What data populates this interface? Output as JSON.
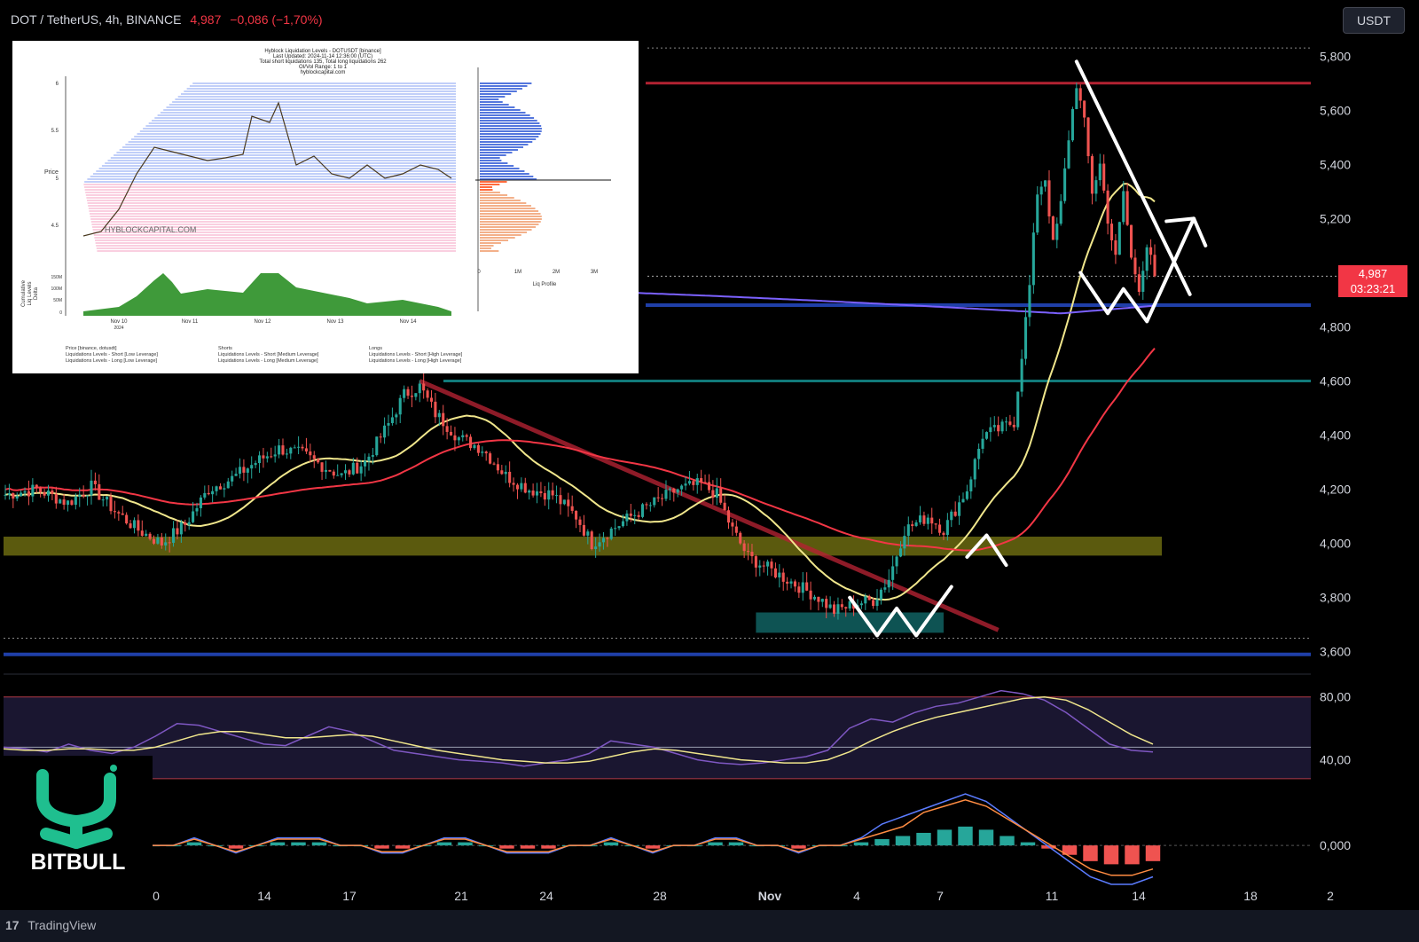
{
  "header": {
    "symbol": "DOT / TetherUS, 4h, BINANCE",
    "price": "4,987",
    "change": "−0,086 (−1,70%)"
  },
  "currency_button": "USDT",
  "price_tag": {
    "price": "4,987",
    "countdown": "03:23:21"
  },
  "branding": {
    "logo_text": "BITBULL",
    "platform": "TradingView"
  },
  "colors": {
    "up": "#26a69a",
    "down": "#ef5350",
    "ma_yellow": "#f0e68c",
    "ma_red": "#f23645",
    "ma_purple": "#7b61ff",
    "support_blue": "#1f3fa8",
    "resist_red": "#b22232",
    "teal_zone": "#0f5c5c",
    "olive_zone": "#6b6a10"
  },
  "chart_data": [
    {
      "type": "candlestick",
      "y_axis_labels": [
        "5,800",
        "5,600",
        "5,400",
        "5,200",
        "4,800",
        "4,600",
        "4,400",
        "4,200",
        "4,000",
        "3,800",
        "3,600"
      ],
      "ylim": [
        3550,
        5850
      ],
      "x_axis_labels": [
        "0",
        "14",
        "17",
        "21",
        "24",
        "28",
        "Nov",
        "4",
        "7",
        "11",
        "14",
        "18",
        "2"
      ],
      "last_price": 4.987,
      "price_path": [
        [
          0,
          4.18
        ],
        [
          8,
          4.2
        ],
        [
          16,
          4.15
        ],
        [
          22,
          4.21
        ],
        [
          28,
          4.12
        ],
        [
          34,
          4.05
        ],
        [
          40,
          4.0
        ],
        [
          46,
          4.07
        ],
        [
          52,
          4.2
        ],
        [
          58,
          4.24
        ],
        [
          64,
          4.3
        ],
        [
          70,
          4.35
        ],
        [
          76,
          4.33
        ],
        [
          82,
          4.28
        ],
        [
          86,
          4.25
        ],
        [
          92,
          4.3
        ],
        [
          98,
          4.44
        ],
        [
          102,
          4.55
        ],
        [
          106,
          4.58
        ],
        [
          110,
          4.48
        ],
        [
          116,
          4.39
        ],
        [
          122,
          4.35
        ],
        [
          128,
          4.25
        ],
        [
          134,
          4.2
        ],
        [
          140,
          4.18
        ],
        [
          146,
          4.1
        ],
        [
          150,
          4.0
        ],
        [
          154,
          4.04
        ],
        [
          160,
          4.1
        ],
        [
          166,
          4.15
        ],
        [
          172,
          4.2
        ],
        [
          178,
          4.22
        ],
        [
          182,
          4.18
        ],
        [
          186,
          4.05
        ],
        [
          190,
          3.95
        ],
        [
          196,
          3.9
        ],
        [
          202,
          3.85
        ],
        [
          208,
          3.8
        ],
        [
          212,
          3.75
        ],
        [
          218,
          3.78
        ],
        [
          222,
          3.79
        ],
        [
          226,
          3.87
        ],
        [
          230,
          4.05
        ],
        [
          236,
          4.1
        ],
        [
          240,
          4.05
        ],
        [
          246,
          4.2
        ],
        [
          250,
          4.4
        ],
        [
          254,
          4.42
        ],
        [
          258,
          4.45
        ],
        [
          260,
          4.7
        ],
        [
          262,
          4.95
        ],
        [
          264,
          5.3
        ],
        [
          266,
          5.35
        ],
        [
          268,
          5.1
        ],
        [
          270,
          5.25
        ],
        [
          272,
          5.5
        ],
        [
          274,
          5.7
        ],
        [
          276,
          5.55
        ],
        [
          278,
          5.3
        ],
        [
          280,
          5.4
        ],
        [
          282,
          5.2
        ],
        [
          284,
          5.05
        ],
        [
          286,
          5.3
        ],
        [
          288,
          5.05
        ],
        [
          290,
          4.95
        ],
        [
          292,
          5.1
        ],
        [
          294,
          4.99
        ]
      ],
      "horizontal_levels": [
        5.7,
        4.88,
        4.6,
        3.59
      ],
      "zones": [
        {
          "name": "olive_support",
          "from": 3.96,
          "to": 4.02
        },
        {
          "name": "teal_demand",
          "from": 3.67,
          "to": 3.74
        }
      ]
    },
    {
      "type": "line",
      "y_axis_labels": [
        "80,00",
        "40,00"
      ],
      "ylim": [
        20,
        90
      ],
      "levels": [
        80,
        48,
        28
      ],
      "series": [
        {
          "values": [
            48,
            47,
            45,
            50,
            46,
            44,
            48,
            55,
            63,
            62,
            58,
            54,
            50,
            49,
            55,
            61,
            58,
            52,
            46,
            44,
            42,
            40,
            39,
            38,
            36,
            38,
            40,
            44,
            52,
            50,
            48,
            44,
            40,
            38,
            37,
            38,
            40,
            42,
            46,
            60,
            66,
            64,
            70,
            74,
            76,
            80,
            84,
            82,
            78,
            70,
            60,
            50,
            46,
            45
          ]
        },
        {
          "values": [
            47,
            46,
            46,
            47,
            47,
            46,
            46,
            48,
            52,
            56,
            58,
            58,
            56,
            54,
            54,
            55,
            56,
            55,
            52,
            49,
            46,
            44,
            42,
            40,
            39,
            38,
            38,
            39,
            42,
            45,
            47,
            46,
            44,
            42,
            40,
            39,
            38,
            38,
            40,
            45,
            52,
            58,
            63,
            67,
            70,
            73,
            76,
            79,
            80,
            78,
            72,
            64,
            56,
            50
          ]
        }
      ]
    },
    {
      "type": "bar",
      "y_axis_labels": [
        "0,000"
      ],
      "ylim": [
        -0.09,
        0.15
      ],
      "values": [
        0.0,
        0.0,
        0.01,
        0.0,
        -0.01,
        0.0,
        0.01,
        0.01,
        0.01,
        0.0,
        0.0,
        -0.01,
        -0.01,
        0.0,
        0.01,
        0.01,
        0.0,
        -0.01,
        -0.01,
        -0.01,
        0.0,
        0.0,
        0.01,
        0.0,
        -0.01,
        0.0,
        0.0,
        0.01,
        0.01,
        0.0,
        0.0,
        -0.01,
        0.0,
        0.0,
        0.01,
        0.02,
        0.03,
        0.04,
        0.05,
        0.06,
        0.05,
        0.03,
        0.01,
        -0.01,
        -0.03,
        -0.05,
        -0.06,
        -0.06,
        -0.05
      ]
    }
  ],
  "inset": {
    "title_lines": [
      "Hyblock Liquidation Levels - DOTUSDT [binance]",
      "Last Updated: 2024-11-14 12:36:00 (UTC)",
      "Total short liquidations 135, Total long liquidations 262",
      "OI/Vol Range: 1 to 1",
      "hyblockcapital.com"
    ],
    "y_axis_label": "Price",
    "y_ticks": [
      "6",
      "5.5",
      "5",
      "4.5"
    ],
    "x_ticks": [
      "Nov 10",
      "Nov 11",
      "Nov 12",
      "Nov 13",
      "Nov 14"
    ],
    "x_sub": "2024",
    "sub_label_lines": [
      "Cumulative",
      "Liq Levels",
      "Delta"
    ],
    "sub_ticks": [
      "150M",
      "100M",
      "50M",
      "0"
    ],
    "liq_ticks": [
      "0",
      "1M",
      "2M",
      "3M"
    ],
    "liq_label": "Liq Profile",
    "watermark": "HYBLOCKCAPITAL.COM",
    "legend": [
      "Price [binance, dotusdt]",
      "Liquidations Levels - Short [Low Leverage]",
      "Liquidations Levels - Long [Low Leverage]",
      "Shorts",
      "Liquidations Levels - Short [Medium Leverage]",
      "Liquidations Levels - Long [Medium Leverage]",
      "Longs",
      "Liquidations Levels - Short [High Leverage]",
      "Liquidations Levels - Long [High Leverage]"
    ]
  }
}
